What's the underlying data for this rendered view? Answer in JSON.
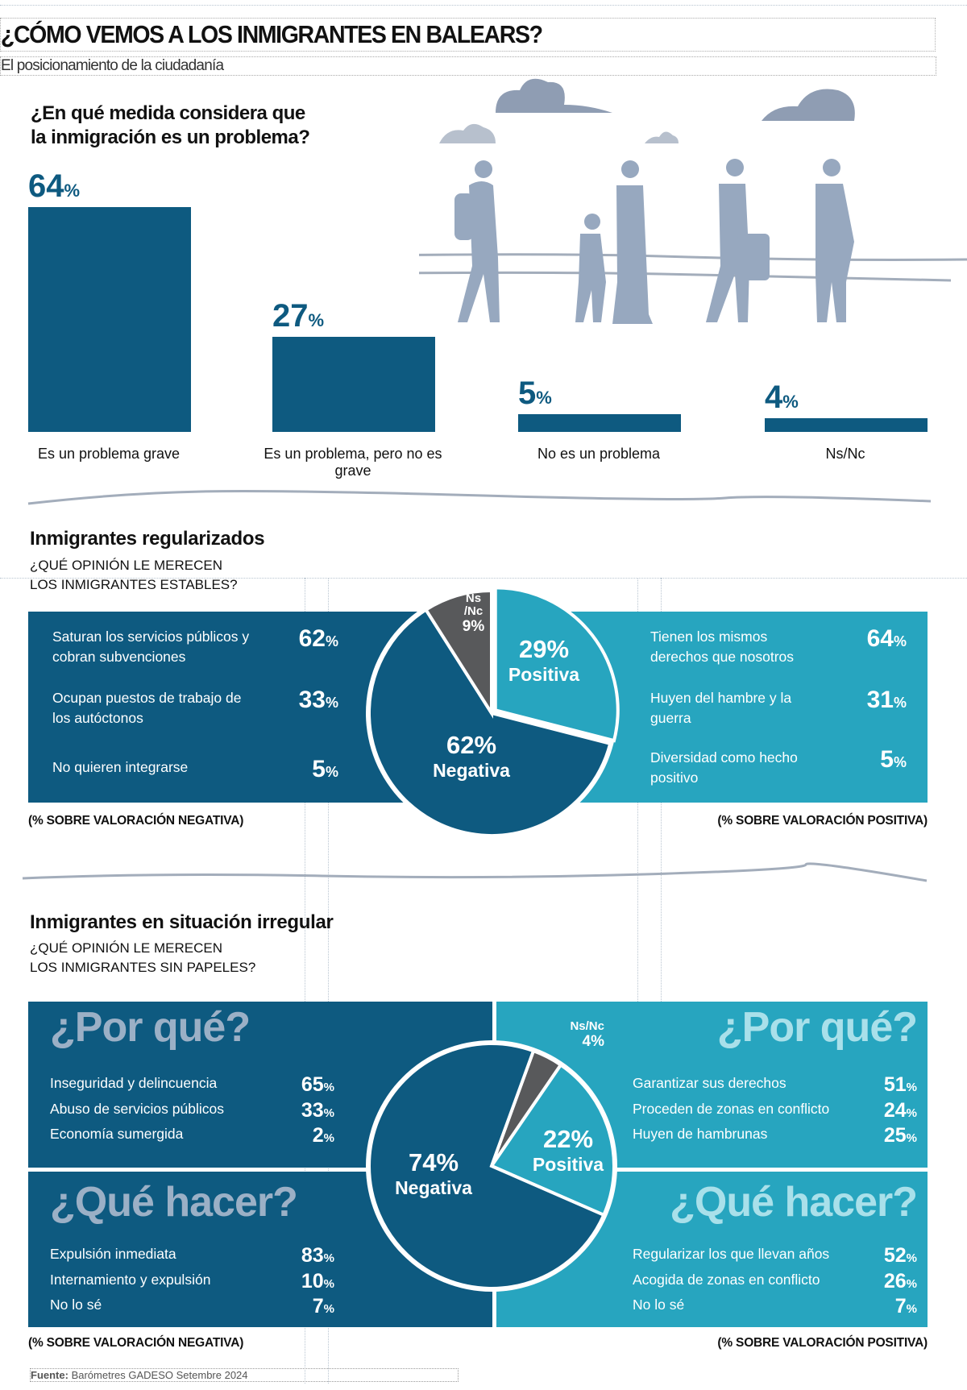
{
  "header": {
    "title": "¿CÓMO VEMOS A LOS INMIGRANTES EN BALEARS?",
    "subtitle": "El posicionamiento de la ciudadanía"
  },
  "colors": {
    "dark_blue": "#0e5a80",
    "teal": "#27a5bf",
    "gray": "#58595b",
    "silhouette": "#97a8bf"
  },
  "chart_data": [
    {
      "type": "bar",
      "title": "¿En qué medida considera que la inmigración es un problema?",
      "categories": [
        "Es un problema grave",
        "Es un problema, pero no es grave",
        "No es un problema",
        "Ns/Nc"
      ],
      "values": [
        64,
        27,
        5,
        4
      ],
      "unit": "%",
      "ylim": [
        0,
        64
      ],
      "grid": false
    },
    {
      "type": "pie",
      "title": "Inmigrantes regularizados",
      "subtitle": "¿QUÉ OPINIÓN LE MERECEN LOS INMIGRANTES ESTABLES?",
      "slices": [
        {
          "name": "Positiva",
          "value": 29,
          "color": "#27a5bf"
        },
        {
          "name": "Negativa",
          "value": 62,
          "color": "#0e5a80"
        },
        {
          "name": "Ns /Nc",
          "value": 9,
          "color": "#58595b"
        }
      ],
      "negative_reasons": [
        {
          "label": "Saturan los servicios públicos y cobran subvenciones",
          "value": 62
        },
        {
          "label": "Ocupan puestos de trabajo de los autóctonos",
          "value": 33
        },
        {
          "label": "No quieren integrarse",
          "value": 5
        }
      ],
      "positive_reasons": [
        {
          "label": "Tienen los mismos derechos que nosotros",
          "value": 64
        },
        {
          "label": "Huyen del hambre y la guerra",
          "value": 31
        },
        {
          "label": "Diversidad como hecho positivo",
          "value": 5
        }
      ],
      "note_negative": "(% SOBRE VALORACIÓN NEGATIVA)",
      "note_positive": "(% SOBRE VALORACIÓN POSITIVA)"
    },
    {
      "type": "pie",
      "title": "Inmigrantes en situación irregular",
      "subtitle": "¿QUÉ OPINIÓN LE MERECEN LOS INMIGRANTES SIN PAPELES?",
      "slices": [
        {
          "name": "Ns/Nc",
          "value": 4,
          "color": "#58595b"
        },
        {
          "name": "Positiva",
          "value": 22,
          "color": "#27a5bf"
        },
        {
          "name": "Negativa",
          "value": 74,
          "color": "#0e5a80"
        }
      ],
      "why_heading": "¿Por qué?",
      "what_heading": "¿Qué hacer?",
      "negative_why": [
        {
          "label": "Inseguridad y delincuencia",
          "value": 65
        },
        {
          "label": "Abuso de servicios públicos",
          "value": 33
        },
        {
          "label": "Economía sumergida",
          "value": 2
        }
      ],
      "negative_what": [
        {
          "label": "Expulsión inmediata",
          "value": 83
        },
        {
          "label": "Internamiento y expulsión",
          "value": 10
        },
        {
          "label": "No lo sé",
          "value": 7
        }
      ],
      "positive_why": [
        {
          "label": "Garantizar sus derechos",
          "value": 51
        },
        {
          "label": "Proceden de zonas en conflicto",
          "value": 24
        },
        {
          "label": "Huyen de hambrunas",
          "value": 25
        }
      ],
      "positive_what": [
        {
          "label": "Regularizar los que llevan años",
          "value": 52
        },
        {
          "label": "Acogida de zonas en conflicto",
          "value": 26
        },
        {
          "label": "No lo sé",
          "value": 7
        }
      ],
      "note_negative": "(% SOBRE VALORACIÓN NEGATIVA)",
      "note_positive": "(% SOBRE VALORACIÓN POSITIVA)"
    }
  ],
  "labels": {
    "s1_l1": "¿En qué medida considera que",
    "s1_l2": "la inmigración es un problema?",
    "s2_sub1": "¿QUÉ OPINIÓN LE MERECEN",
    "s2_sub2": "LOS INMIGRANTES ESTABLES?",
    "s3_sub1": "¿QUÉ OPINIÓN LE MERECEN",
    "s3_sub2": "LOS INMIGRANTES SIN PAPELES?",
    "pct": "%",
    "p1_pos": "29%",
    "p1_neg": "62%",
    "p1_ns_a": "Ns",
    "p1_ns_b": "/Nc",
    "p1_ns": "9%",
    "p2_pos": "22%",
    "p2_neg": "74%",
    "p2_ns": "Ns/Nc",
    "p2_ns_v": "4%",
    "negativa": "Negativa",
    "positiva": "Positiva"
  },
  "source": {
    "label": "Fuente:",
    "text": "Barómetres GADESO Setembre 2024"
  }
}
